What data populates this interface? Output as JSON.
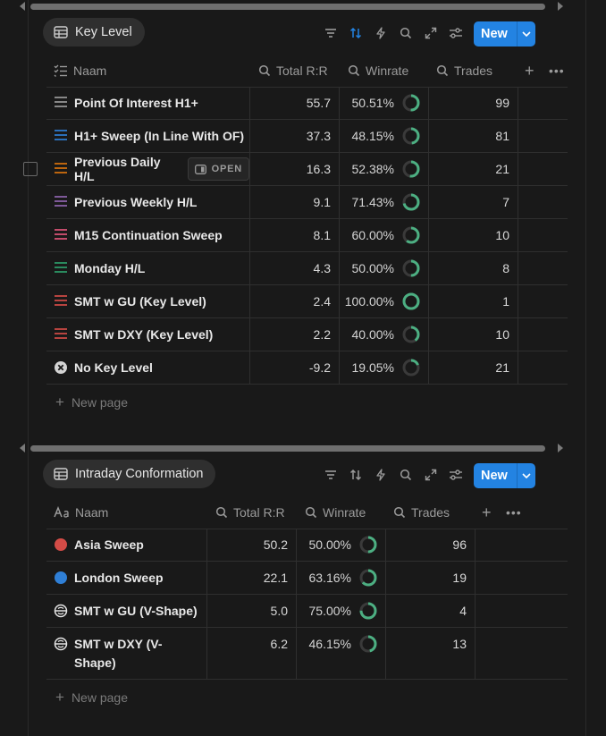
{
  "colors": {
    "accent": "#2383e2",
    "ring": "#4caf82",
    "ring_track": "#3a3a3a",
    "red": "#d44c47",
    "blue": "#2f7fd6"
  },
  "key_level": {
    "title": "Key Level",
    "new_label": "New",
    "headers": {
      "name": "Naam",
      "rr": "Total R:R",
      "winrate": "Winrate",
      "trades": "Trades"
    },
    "open_label": "OPEN",
    "new_page": "New page",
    "rows": [
      {
        "name": "Point Of Interest H1+",
        "rr": "55.7",
        "winrate": "50.51%",
        "pct": 50.51,
        "trades": "99",
        "icon": "lines-icon",
        "color": "#9b9b9b"
      },
      {
        "name": "H1+ Sweep (In Line With OF)",
        "rr": "37.3",
        "winrate": "48.15%",
        "pct": 48.15,
        "trades": "81",
        "icon": "lines-icon",
        "color": "#2f7fd6"
      },
      {
        "name": "Previous Daily H/L",
        "rr": "16.3",
        "winrate": "52.38%",
        "pct": 52.38,
        "trades": "21",
        "icon": "lines-icon",
        "color": "#d9730d"
      },
      {
        "name": "Previous Weekly H/L",
        "rr": "9.1",
        "winrate": "71.43%",
        "pct": 71.43,
        "trades": "7",
        "icon": "lines-icon",
        "color": "#9065b0"
      },
      {
        "name": "M15 Continuation Sweep",
        "rr": "8.1",
        "winrate": "60.00%",
        "pct": 60.0,
        "trades": "10",
        "icon": "lines-icon",
        "color": "#e0557a"
      },
      {
        "name": "Monday H/L",
        "rr": "4.3",
        "winrate": "50.00%",
        "pct": 50.0,
        "trades": "8",
        "icon": "lines-icon",
        "color": "#2e9e6b"
      },
      {
        "name": "SMT w GU (Key Level)",
        "rr": "2.4",
        "winrate": "100.00%",
        "pct": 100.0,
        "trades": "1",
        "icon": "lines-icon",
        "color": "#d44c47"
      },
      {
        "name": "SMT w DXY (Key Level)",
        "rr": "2.2",
        "winrate": "40.00%",
        "pct": 40.0,
        "trades": "10",
        "icon": "lines-icon",
        "color": "#d44c47"
      },
      {
        "name": "No Key Level",
        "rr": "-9.2",
        "winrate": "19.05%",
        "pct": 19.05,
        "trades": "21",
        "icon": "x-circle-icon",
        "color": "#d4d4d4"
      }
    ]
  },
  "intraday": {
    "title": "Intraday Conformation",
    "new_label": "New",
    "headers": {
      "name": "Naam",
      "rr": "Total R:R",
      "winrate": "Winrate",
      "trades": "Trades"
    },
    "new_page": "New page",
    "rows": [
      {
        "name": "Asia Sweep",
        "rr": "50.2",
        "winrate": "50.00%",
        "pct": 50.0,
        "trades": "96",
        "icon": "red-circle-icon",
        "color": "#d44c47"
      },
      {
        "name": "London Sweep",
        "rr": "22.1",
        "winrate": "63.16%",
        "pct": 63.16,
        "trades": "19",
        "icon": "blue-circle-icon",
        "color": "#2f7fd6"
      },
      {
        "name": "SMT w GU (V-Shape)",
        "rr": "5.0",
        "winrate": "75.00%",
        "pct": 75.0,
        "trades": "4",
        "icon": "smt-icon",
        "color": "#e6e6e6"
      },
      {
        "name_line1": "SMT w DXY (V-",
        "name_line2": "Shape)",
        "rr": "6.2",
        "winrate": "46.15%",
        "pct": 46.15,
        "trades": "13",
        "icon": "smt-icon",
        "color": "#e6e6e6"
      }
    ]
  }
}
